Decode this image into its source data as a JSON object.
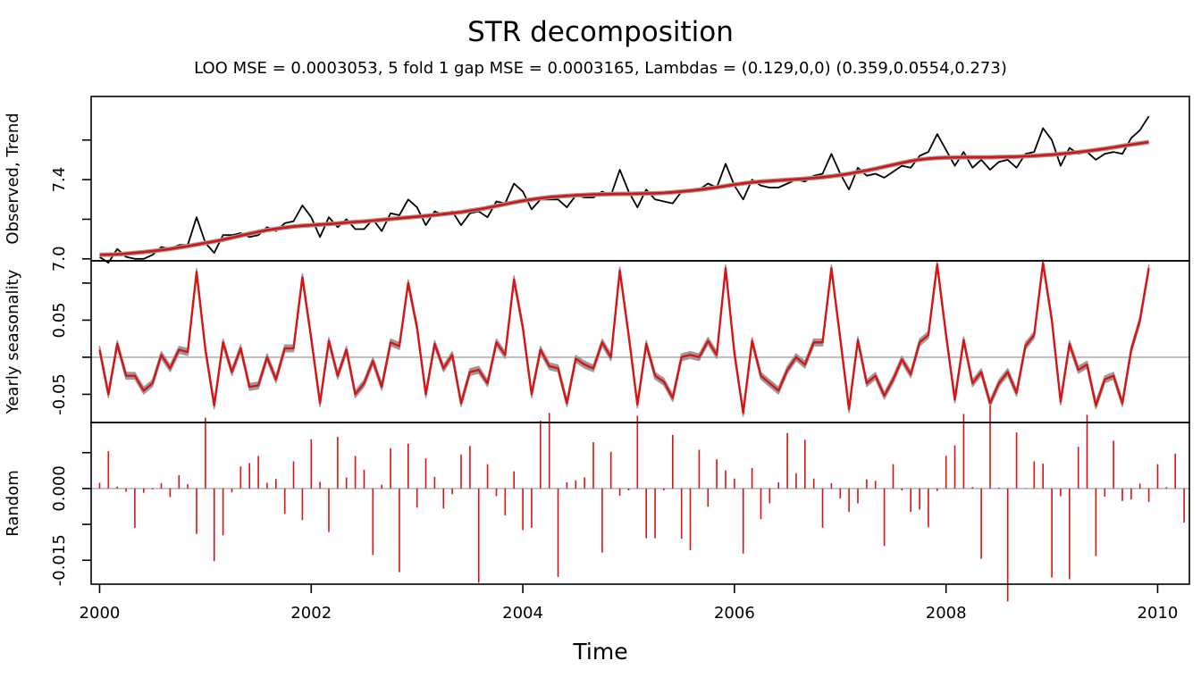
{
  "chart_data": {
    "type": "line",
    "title": "STR decomposition",
    "subtitle": "LOO MSE = 0.0003053, 5 fold 1 gap MSE = 0.0003165, Lambdas = (0.129,0,0) (0.359,0.0554,0.273)",
    "xlabel": "Time",
    "xlim": [
      1999.92,
      2010.3
    ],
    "x_ticks": [
      2000,
      2002,
      2004,
      2006,
      2008,
      2010
    ],
    "x_tick_labels": [
      "2000",
      "2002",
      "2004",
      "2006",
      "2008",
      "2010"
    ],
    "x_start": 2000,
    "x_step": 0.0833333,
    "colors": {
      "observed": "#000000",
      "trend": "#dd1111",
      "band": "#9a9a9a",
      "seasonal": "#dd1111",
      "random": "#dd1111",
      "zero_line": "#bdbdbd"
    },
    "panels": [
      {
        "ylabel": "Observed, Trend",
        "ylim": [
          6.99,
          7.82
        ],
        "y_ticks": [
          7.0,
          7.2,
          7.4,
          7.6
        ],
        "y_tick_labels": [
          "7.0",
          "",
          "7.4",
          ""
        ],
        "zero_line": null,
        "series": [
          {
            "name": "Observed",
            "kind": "line",
            "values": [
              7.01,
              6.98,
              7.05,
              7.01,
              7.0,
              7.0,
              7.02,
              7.06,
              7.05,
              7.07,
              7.07,
              7.21,
              7.08,
              7.03,
              7.12,
              7.12,
              7.13,
              7.11,
              7.12,
              7.16,
              7.14,
              7.18,
              7.19,
              7.27,
              7.21,
              7.11,
              7.21,
              7.16,
              7.2,
              7.15,
              7.15,
              7.2,
              7.14,
              7.23,
              7.22,
              7.3,
              7.26,
              7.17,
              7.24,
              7.22,
              7.24,
              7.17,
              7.23,
              7.24,
              7.21,
              7.29,
              7.28,
              7.38,
              7.34,
              7.25,
              7.3,
              7.3,
              7.3,
              7.26,
              7.32,
              7.31,
              7.31,
              7.34,
              7.32,
              7.45,
              7.34,
              7.26,
              7.35,
              7.3,
              7.29,
              7.28,
              7.34,
              7.35,
              7.35,
              7.38,
              7.36,
              7.48,
              7.37,
              7.3,
              7.4,
              7.37,
              7.36,
              7.36,
              7.38,
              7.4,
              7.39,
              7.42,
              7.43,
              7.53,
              7.43,
              7.35,
              7.46,
              7.42,
              7.43,
              7.41,
              7.44,
              7.47,
              7.46,
              7.52,
              7.54,
              7.63,
              7.55,
              7.47,
              7.54,
              7.46,
              7.5,
              7.45,
              7.49,
              7.5,
              7.46,
              7.53,
              7.54,
              7.66,
              7.6,
              7.47,
              7.56,
              7.53,
              7.54,
              7.5,
              7.53,
              7.54,
              7.53,
              7.61,
              7.65,
              7.72
            ]
          },
          {
            "name": "Trend",
            "kind": "line",
            "values": [
              7.02,
              7.021,
              7.023,
              7.026,
              7.03,
              7.034,
              7.039,
              7.044,
              7.05,
              7.057,
              7.064,
              7.072,
              7.08,
              7.088,
              7.097,
              7.107,
              7.117,
              7.127,
              7.136,
              7.145,
              7.152,
              7.158,
              7.163,
              7.167,
              7.17,
              7.173,
              7.176,
              7.179,
              7.183,
              7.186,
              7.189,
              7.193,
              7.197,
              7.201,
              7.205,
              7.209,
              7.213,
              7.217,
              7.221,
              7.226,
              7.231,
              7.236,
              7.243,
              7.25,
              7.258,
              7.267,
              7.276,
              7.285,
              7.293,
              7.3,
              7.306,
              7.311,
              7.315,
              7.318,
              7.321,
              7.323,
              7.325,
              7.326,
              7.327,
              7.328,
              7.328,
              7.329,
              7.33,
              7.331,
              7.333,
              7.336,
              7.34,
              7.344,
              7.349,
              7.355,
              7.361,
              7.368,
              7.375,
              7.381,
              7.386,
              7.39,
              7.393,
              7.396,
              7.399,
              7.402,
              7.405,
              7.408,
              7.412,
              7.417,
              7.423,
              7.43,
              7.438,
              7.446,
              7.455,
              7.465,
              7.475,
              7.485,
              7.494,
              7.501,
              7.506,
              7.509,
              7.511,
              7.512,
              7.513,
              7.513,
              7.513,
              7.513,
              7.514,
              7.515,
              7.516,
              7.518,
              7.52,
              7.523,
              7.526,
              7.53,
              7.534,
              7.539,
              7.544,
              7.55,
              7.556,
              7.563,
              7.57,
              7.577,
              7.583,
              7.59
            ]
          }
        ]
      },
      {
        "ylabel": "Yearly seasonality",
        "ylim": [
          -0.088,
          0.13
        ],
        "y_ticks": [
          -0.05,
          0.0,
          0.05,
          0.1
        ],
        "y_tick_labels": [
          "-0.05",
          "",
          "0.05",
          ""
        ],
        "zero_line": 0,
        "series": [
          {
            "name": "Yearly seasonality",
            "kind": "line_band",
            "band_halfwidth": 0.0045,
            "values": [
              0.01,
              -0.05,
              0.018,
              -0.025,
              -0.025,
              -0.045,
              -0.035,
              0.003,
              -0.015,
              0.01,
              0.007,
              0.115,
              0.01,
              -0.065,
              0.02,
              -0.02,
              0.012,
              -0.04,
              -0.038,
              0.0,
              -0.03,
              0.012,
              0.012,
              0.108,
              0.025,
              -0.062,
              0.022,
              -0.025,
              0.01,
              -0.05,
              -0.035,
              -0.005,
              -0.04,
              0.02,
              0.015,
              0.1,
              0.04,
              -0.05,
              0.018,
              -0.015,
              0.003,
              -0.062,
              -0.02,
              -0.017,
              -0.035,
              0.02,
              0.003,
              0.105,
              0.04,
              -0.05,
              0.01,
              -0.012,
              -0.015,
              -0.062,
              -0.002,
              -0.01,
              -0.015,
              0.02,
              0.0,
              0.117,
              0.03,
              -0.064,
              0.018,
              -0.025,
              -0.033,
              -0.055,
              0.0,
              0.003,
              0.0,
              0.022,
              0.003,
              0.12,
              0.005,
              -0.075,
              0.022,
              -0.025,
              -0.035,
              -0.045,
              -0.017,
              0.0,
              -0.01,
              0.02,
              0.02,
              0.12,
              0.025,
              -0.07,
              0.023,
              -0.035,
              -0.025,
              -0.052,
              -0.03,
              -0.003,
              -0.023,
              0.02,
              0.03,
              0.125,
              0.03,
              -0.057,
              0.023,
              -0.035,
              -0.02,
              -0.062,
              -0.035,
              -0.02,
              -0.048,
              0.015,
              0.03,
              0.127,
              0.05,
              -0.06,
              0.018,
              -0.017,
              -0.01,
              -0.065,
              -0.03,
              -0.025,
              -0.062,
              0.01,
              0.05,
              0.12
            ]
          }
        ]
      },
      {
        "ylabel": "Random",
        "ylim": [
          -0.02,
          0.0138
        ],
        "y_ticks": [
          -0.015,
          -0.0075,
          0.0,
          0.0075
        ],
        "y_tick_labels": [
          "-0.015",
          "",
          "0.000",
          ""
        ],
        "zero_line": 0,
        "series": [
          {
            "name": "Random",
            "kind": "spikes",
            "values": [
              0.0012,
              0.0078,
              0.0004,
              -0.0007,
              -0.0082,
              -0.0009,
              -0.0002,
              0.0011,
              -0.0018,
              0.0028,
              0.0009,
              -0.0095,
              0.0148,
              -0.0152,
              -0.0098,
              -0.0008,
              0.0046,
              0.0053,
              0.0068,
              0.0012,
              0.002,
              -0.0053,
              0.0057,
              -0.0066,
              0.0103,
              0.0014,
              -0.0091,
              0.0108,
              0.0023,
              0.0068,
              0.0039,
              -0.0139,
              0.0008,
              0.0084,
              -0.0175,
              0.0094,
              -0.004,
              0.0063,
              0.0024,
              -0.0042,
              -0.0012,
              0.0071,
              0.0089,
              -0.0197,
              0.0051,
              -0.0016,
              -0.0056,
              0.0036,
              -0.0087,
              -0.0082,
              0.0142,
              0.0158,
              -0.0185,
              0.0013,
              0.0017,
              0.0023,
              0.0097,
              -0.0134,
              0.0077,
              -0.0015,
              -0.0004,
              0.0152,
              -0.0104,
              -0.0104,
              -0.0004,
              0.0112,
              -0.0105,
              -0.0129,
              0.0081,
              -0.0038,
              0.0061,
              0.0038,
              0.0021,
              -0.0136,
              0.0043,
              -0.0064,
              -0.0031,
              0.0013,
              0.0116,
              0.0032,
              0.0102,
              0.0021,
              -0.0082,
              0.0011,
              -0.0021,
              -0.0049,
              -0.0031,
              0.0019,
              0.0016,
              -0.012,
              0.0051,
              -0.0004,
              -0.0049,
              -0.0044,
              -0.0081,
              -0.0005,
              0.0068,
              0.009,
              0.0156,
              0.0003,
              -0.0147,
              0.0173,
              0.0002,
              -0.0236,
              0.0117,
              -0.0001,
              0.0057,
              0.0052,
              -0.0186,
              -0.0016,
              -0.019,
              0.0087,
              0.0154,
              -0.0141,
              -0.0017,
              0.01,
              -0.0026,
              -0.0023,
              0.001,
              -0.0028,
              0.0051,
              0.0003,
              0.0073,
              -0.0071
            ]
          }
        ]
      }
    ]
  }
}
